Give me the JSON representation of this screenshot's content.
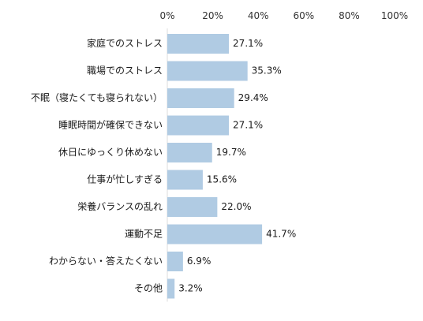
{
  "chart_data": {
    "type": "bar",
    "orientation": "horizontal",
    "unit": "%",
    "xlim": [
      0,
      100
    ],
    "x_ticks": [
      "0%",
      "20%",
      "40%",
      "60%",
      "80%",
      "100%"
    ],
    "tick_values": [
      0,
      20,
      40,
      60,
      80,
      100
    ],
    "categories": [
      "家庭でのストレス",
      "職場でのストレス",
      "不眠（寝たくても寝られない）",
      "睡眠時間が確保できない",
      "休日にゆっくり休めない",
      "仕事が忙しすぎる",
      "栄養バランスの乱れ",
      "運動不足",
      "わからない・答えたくない",
      "その他"
    ],
    "values": [
      27.1,
      35.3,
      29.4,
      27.1,
      19.7,
      15.6,
      22.0,
      41.7,
      6.9,
      3.2
    ],
    "value_labels": [
      "27.1%",
      "35.3%",
      "29.4%",
      "27.1%",
      "19.7%",
      "15.6%",
      "22.0%",
      "41.7%",
      "6.9%",
      "3.2%"
    ],
    "bar_color": "#b0cbe3",
    "axis_line_color": "#dddddd",
    "grid": false
  }
}
